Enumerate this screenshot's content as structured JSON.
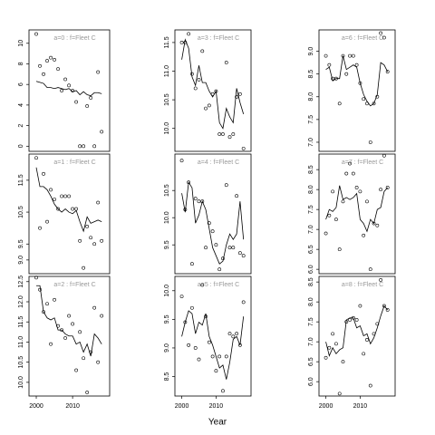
{
  "xlabel": "Year",
  "chart_data": [
    {
      "type": "scatter",
      "title": "a=0 : f=Fleet C",
      "x": [
        2000,
        2001,
        2002,
        2003,
        2004,
        2005,
        2006,
        2007,
        2008,
        2009,
        2010,
        2011,
        2012,
        2013,
        2014,
        2015,
        2016,
        2017,
        2018
      ],
      "series": [
        {
          "style": "points",
          "color": "#000000",
          "values": [
            10.9,
            7.8,
            7.0,
            8.3,
            8.6,
            8.4,
            7.5,
            5.4,
            6.5,
            5.9,
            5.4,
            4.3,
            0,
            0,
            3.9,
            4.7,
            0,
            7.2,
            1.4
          ]
        },
        {
          "style": "line",
          "color": "#000000",
          "values": [
            6.3,
            6.2,
            6.1,
            5.7,
            5.7,
            5.6,
            5.7,
            5.6,
            5.5,
            5.6,
            5.3,
            5.4,
            5.0,
            5.3,
            5.0,
            4.9,
            5.2,
            5.2,
            5.1
          ]
        }
      ],
      "xlim": [
        1998,
        2020.2
      ],
      "ylim": [
        -0.5,
        11.3
      ],
      "yticks": [
        0,
        2,
        4,
        6,
        8,
        10
      ]
    },
    {
      "type": "scatter",
      "title": "a=1 : f=Fleet C",
      "x": [
        2000,
        2001,
        2002,
        2003,
        2004,
        2005,
        2006,
        2007,
        2008,
        2009,
        2010,
        2011,
        2012,
        2013,
        2014,
        2015,
        2016,
        2017,
        2018
      ],
      "series": [
        {
          "style": "points",
          "color": "#000000",
          "values": [
            12.2,
            10.0,
            11.7,
            10.2,
            11.2,
            10.9,
            10.6,
            11.0,
            11.0,
            11.0,
            10.6,
            10.6,
            9.6,
            8.75,
            10.05,
            9.7,
            9.5,
            10.8,
            9.6
          ]
        },
        {
          "style": "line",
          "color": "#000000",
          "values": [
            11.9,
            11.3,
            11.3,
            11.2,
            11.0,
            10.75,
            10.6,
            10.5,
            10.6,
            10.5,
            10.45,
            10.55,
            10.2,
            9.9,
            10.35,
            10.15,
            10.2,
            10.25,
            10.2
          ]
        }
      ],
      "xlim": [
        1998,
        2020.2
      ],
      "ylim": [
        8.57,
        12.32
      ],
      "yticks": [
        {
          "value": 9,
          "label": "9.0"
        },
        9.5,
        10.5,
        11.5
      ]
    },
    {
      "type": "scatter",
      "title": "a=2 : f=Fleet C",
      "x": [
        2000,
        2001,
        2002,
        2003,
        2004,
        2005,
        2006,
        2007,
        2008,
        2009,
        2010,
        2011,
        2012,
        2013,
        2014,
        2015,
        2016,
        2017,
        2018
      ],
      "series": [
        {
          "style": "points",
          "color": "#000000",
          "values": [
            12.6,
            12.3,
            11.75,
            11.95,
            10.95,
            12.05,
            11.4,
            11.3,
            11.1,
            11.65,
            11.45,
            10.3,
            11.25,
            10.6,
            9.75,
            10.75,
            11.85,
            10.5,
            11.65
          ]
        },
        {
          "style": "line",
          "color": "#000000",
          "values": [
            12.4,
            12.4,
            11.75,
            11.6,
            11.55,
            11.6,
            11.3,
            11.3,
            11.2,
            11.15,
            11.15,
            10.95,
            11.0,
            10.75,
            10.95,
            10.65,
            11.2,
            11.1,
            10.95
          ]
        }
      ],
      "xlim": [
        1998,
        2020.2
      ],
      "ylim": [
        9.66,
        12.63
      ],
      "yticks": [
        {
          "value": 10,
          "label": "10.0"
        },
        10.5,
        {
          "value": 11,
          "label": "11.0"
        },
        11.5,
        {
          "value": 12,
          "label": "12.0"
        },
        12.5
      ],
      "xticks": [
        2000,
        2010
      ]
    },
    {
      "type": "scatter",
      "title": "a=3 : f=Fleet C",
      "x": [
        2000,
        2001,
        2002,
        2003,
        2004,
        2005,
        2006,
        2007,
        2008,
        2009,
        2010,
        2011,
        2012,
        2013,
        2014,
        2015,
        2016,
        2017,
        2018
      ],
      "series": [
        {
          "style": "points",
          "color": "#000000",
          "values": [
            11.5,
            11.5,
            11.65,
            10.95,
            10.7,
            10.85,
            11.35,
            10.35,
            10.4,
            10.6,
            10.65,
            9.9,
            9.9,
            11.15,
            9.85,
            9.9,
            10.55,
            10.6,
            9.65
          ]
        },
        {
          "style": "line",
          "color": "#000000",
          "values": [
            11.2,
            11.55,
            11.4,
            10.9,
            10.75,
            11.1,
            10.8,
            10.8,
            10.65,
            10.55,
            10.65,
            10.1,
            10.0,
            10.35,
            10.2,
            10.1,
            10.7,
            10.45,
            10.25
          ]
        }
      ],
      "xlim": [
        1998,
        2020.2
      ],
      "ylim": [
        9.6,
        11.72
      ],
      "yticks": [
        {
          "value": 10,
          "label": "10.0"
        },
        10.5,
        {
          "value": 11,
          "label": "11.0"
        },
        11.5
      ]
    },
    {
      "type": "scatter",
      "title": "a=4 : f=Fleet C",
      "x": [
        2000,
        2001,
        2002,
        2003,
        2004,
        2005,
        2006,
        2007,
        2008,
        2009,
        2010,
        2011,
        2012,
        2013,
        2014,
        2015,
        2016,
        2017,
        2018
      ],
      "series": [
        {
          "style": "points",
          "color": "#000000",
          "values": [
            11.05,
            10.15,
            10.65,
            9.15,
            10.35,
            10.3,
            10.3,
            9.45,
            9.9,
            9.75,
            9.5,
            9.05,
            9.25,
            10.6,
            9.45,
            9.45,
            10.4,
            9.35,
            9.3
          ]
        },
        {
          "style": "line",
          "color": "#000000",
          "values": [
            10.45,
            10.1,
            10.65,
            10.55,
            9.9,
            10.05,
            10.3,
            10.15,
            9.8,
            9.45,
            9.3,
            9.15,
            9.2,
            9.5,
            9.7,
            9.6,
            9.7,
            10.3,
            9.6
          ]
        }
      ],
      "xlim": [
        1998,
        2020.2
      ],
      "ylim": [
        8.97,
        11.17
      ],
      "yticks": [
        9.5,
        {
          "value": 10,
          "label": "10.0"
        },
        10.5
      ]
    },
    {
      "type": "scatter",
      "title": "a=5 : f=Fleet C",
      "x": [
        2000,
        2001,
        2002,
        2003,
        2004,
        2005,
        2006,
        2007,
        2008,
        2009,
        2010,
        2011,
        2012,
        2013,
        2014,
        2015,
        2016,
        2017,
        2018
      ],
      "series": [
        {
          "style": "points",
          "color": "#000000",
          "values": [
            9.9,
            9.45,
            9.05,
            9.7,
            9.0,
            8.8,
            10.1,
            9.55,
            9.1,
            8.85,
            8.6,
            8.85,
            8.25,
            8.85,
            9.25,
            9.2,
            9.25,
            9.05,
            9.8
          ]
        },
        {
          "style": "line",
          "color": "#000000",
          "values": [
            9.2,
            9.45,
            9.65,
            9.6,
            9.25,
            9.45,
            9.4,
            9.6,
            9.2,
            9.05,
            8.85,
            8.65,
            8.7,
            8.45,
            8.75,
            9.15,
            9.2,
            9.05,
            9.55
          ]
        }
      ],
      "xlim": [
        1998,
        2020.2
      ],
      "ylim": [
        8.16,
        10.25
      ],
      "yticks": [
        8.5,
        {
          "value": 9,
          "label": "9.0"
        },
        9.5,
        {
          "value": 10,
          "label": "10.0"
        }
      ],
      "xticks": [
        2000,
        2010
      ]
    },
    {
      "type": "scatter",
      "title": "a=6 : f=Fleet C",
      "x": [
        2000,
        2001,
        2002,
        2003,
        2004,
        2005,
        2006,
        2007,
        2008,
        2009,
        2010,
        2011,
        2012,
        2013,
        2014,
        2015,
        2016,
        2017,
        2018
      ],
      "series": [
        {
          "style": "points",
          "color": "#000000",
          "values": [
            8.9,
            8.7,
            8.4,
            8.4,
            7.85,
            8.9,
            8.5,
            8.9,
            8.9,
            8.7,
            8.3,
            7.95,
            7.85,
            7.0,
            7.85,
            8.0,
            9.4,
            9.3,
            8.55
          ]
        },
        {
          "style": "line",
          "color": "#000000",
          "values": [
            8.6,
            8.65,
            8.35,
            8.4,
            8.4,
            8.9,
            8.6,
            8.65,
            8.7,
            8.65,
            8.3,
            8.05,
            7.9,
            7.8,
            7.85,
            8.05,
            8.75,
            8.7,
            8.55
          ]
        }
      ],
      "xlim": [
        1998,
        2020.2
      ],
      "ylim": [
        6.8,
        9.47
      ],
      "yticks": [
        {
          "value": 7,
          "label": "7.0"
        },
        7.5,
        {
          "value": 8,
          "label": "8.0"
        },
        8.5,
        {
          "value": 9,
          "label": "9.0"
        }
      ]
    },
    {
      "type": "scatter",
      "title": "a=7 : f=Fleet C",
      "x": [
        2000,
        2001,
        2002,
        2003,
        2004,
        2005,
        2006,
        2007,
        2008,
        2009,
        2010,
        2011,
        2012,
        2013,
        2014,
        2015,
        2016,
        2017,
        2018
      ],
      "series": [
        {
          "style": "points",
          "color": "#000000",
          "values": [
            6.9,
            7.35,
            7.95,
            7.25,
            6.5,
            7.7,
            8.4,
            8.65,
            8.4,
            8.05,
            7.95,
            6.85,
            7.7,
            6.0,
            7.15,
            7.1,
            8.0,
            8.85,
            8.05
          ]
        },
        {
          "style": "line",
          "color": "#000000",
          "values": [
            7.25,
            7.5,
            7.45,
            7.55,
            8.1,
            7.75,
            7.8,
            7.75,
            7.8,
            7.9,
            7.25,
            7.15,
            6.95,
            7.25,
            7.15,
            7.5,
            7.55,
            7.95,
            8.05
          ]
        }
      ],
      "xlim": [
        1998,
        2020.2
      ],
      "ylim": [
        5.89,
        8.89
      ],
      "yticks": [
        {
          "value": 6,
          "label": "6.0"
        },
        6.5,
        {
          "value": 7,
          "label": "7.0"
        },
        7.5,
        {
          "value": 8,
          "label": "8.0"
        },
        8.5
      ]
    },
    {
      "type": "scatter",
      "title": "a=8 : f=Fleet C",
      "x": [
        2000,
        2001,
        2002,
        2003,
        2004,
        2005,
        2006,
        2007,
        2008,
        2009,
        2010,
        2011,
        2012,
        2013,
        2014,
        2015,
        2016,
        2017,
        2018
      ],
      "series": [
        {
          "style": "points",
          "color": "#000000",
          "values": [
            6.6,
            6.85,
            7.2,
            6.95,
            5.7,
            6.5,
            7.5,
            7.55,
            7.6,
            7.55,
            7.9,
            6.7,
            7.05,
            5.9,
            7.2,
            7.45,
            8.55,
            7.9,
            7.8
          ]
        },
        {
          "style": "line",
          "color": "#000000",
          "values": [
            7.0,
            6.65,
            6.85,
            6.7,
            6.8,
            6.85,
            7.55,
            7.6,
            7.6,
            7.35,
            7.4,
            7.15,
            7.2,
            6.95,
            7.1,
            7.35,
            7.65,
            7.9,
            7.8
          ]
        }
      ],
      "xlim": [
        1998,
        2020.2
      ],
      "ylim": [
        5.64,
        8.64
      ],
      "yticks": [
        {
          "value": 6,
          "label": "6.0"
        },
        6.5,
        {
          "value": 7,
          "label": "7.0"
        },
        7.5,
        {
          "value": 8,
          "label": "8.0"
        },
        8.5
      ],
      "xticks": [
        2000,
        2010
      ]
    }
  ]
}
